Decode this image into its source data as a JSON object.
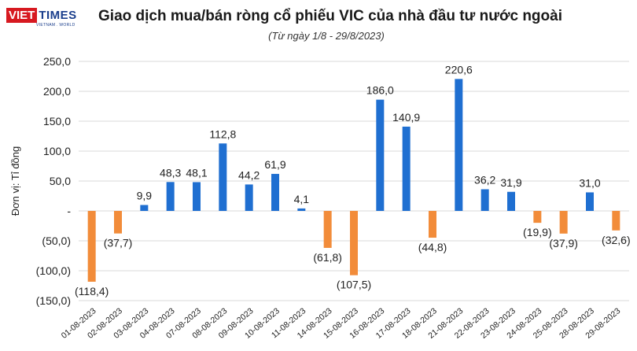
{
  "logo": {
    "viet": "VIET",
    "times": "TIMES",
    "tagline": "VIETNAM . WORLD"
  },
  "header": {
    "title": "Giao dịch mua/bán ròng cổ phiếu VIC của nhà đầu tư nước ngoài",
    "subtitle": "(Từ ngày 1/8 - 29/8/2023)"
  },
  "colors": {
    "positive": "#1f6fd1",
    "negative": "#f28c3a",
    "grid": "#d9d9d9",
    "text": "#222222"
  },
  "chart_data": {
    "type": "bar",
    "title": "Giao dịch mua/bán ròng cổ phiếu VIC của nhà đầu tư nước ngoài",
    "subtitle": "(Từ ngày 1/8 - 29/8/2023)",
    "xlabel": "",
    "ylabel": "Đơn vị: Tỉ đồng",
    "ylim": [
      -150,
      250
    ],
    "yticks": [
      250,
      200,
      150,
      100,
      50,
      0,
      -50,
      -100,
      -150
    ],
    "ytick_labels": [
      "250,0",
      "200,0",
      "150,0",
      "100,0",
      "50,0",
      "-",
      "(50,0)",
      "(100,0)",
      "(150,0)"
    ],
    "grid": "horizontal",
    "legend": "none",
    "categories": [
      "01-08-2023",
      "02-08-2023",
      "03-08-2023",
      "04-08-2023",
      "07-08-2023",
      "08-08-2023",
      "09-08-2023",
      "10-08-2023",
      "11-08-2023",
      "14-08-2023",
      "15-08-2023",
      "16-08-2023",
      "17-08-2023",
      "18-08-2023",
      "21-08-2023",
      "22-08-2023",
      "23-08-2023",
      "24-08-2023",
      "25-08-2023",
      "28-08-2023",
      "29-08-2023"
    ],
    "values": [
      -118.4,
      -37.7,
      9.9,
      48.3,
      48.1,
      112.8,
      44.2,
      61.9,
      4.1,
      -61.8,
      -107.5,
      186.0,
      140.9,
      -44.8,
      220.6,
      36.2,
      31.9,
      -19.9,
      -37.9,
      31.0,
      -32.6
    ],
    "value_labels": [
      "(118,4)",
      "(37,7)",
      "9,9",
      "48,3",
      "48,1",
      "112,8",
      "44,2",
      "61,9",
      "4,1",
      "(61,8)",
      "(107,5)",
      "186,0",
      "140,9",
      "(44,8)",
      "220,6",
      "36,2",
      "31,9",
      "(19,9)",
      "(37,9)",
      "31,0",
      "(32,6)"
    ]
  }
}
